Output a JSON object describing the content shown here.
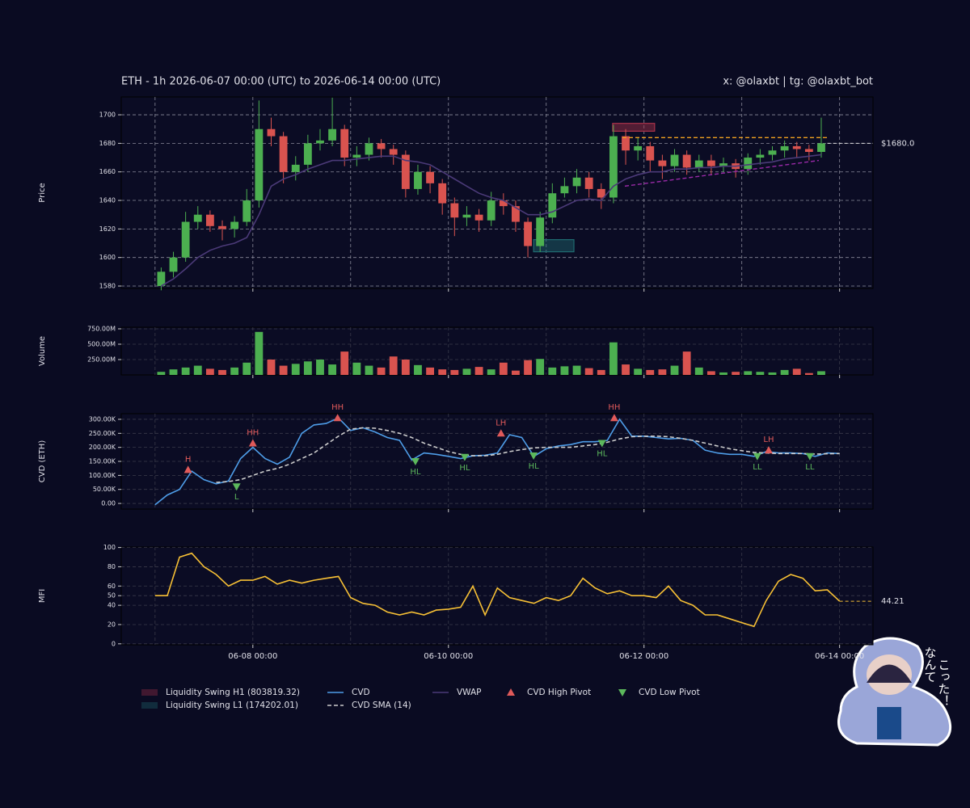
{
  "header": {
    "title": "ETH - 1h 2026-06-07 00:00 (UTC) to 2026-06-14 00:00 (UTC)",
    "handle": "x: @olaxbt | tg: @olaxbt_bot"
  },
  "sticker_text": [
    "なんて",
    "こった！"
  ],
  "x_axis": {
    "xlim": [
      -8.3,
      176.2
    ],
    "grid": [
      0,
      24,
      48,
      72,
      96,
      120,
      144,
      168
    ],
    "ticks": [
      {
        "value": 24,
        "label": "06-08 00:00"
      },
      {
        "value": 72,
        "label": "06-10 00:00"
      },
      {
        "value": 120,
        "label": "06-12 00:00"
      },
      {
        "value": 168,
        "label": "06-14 00:00"
      }
    ]
  },
  "chart_data": [
    {
      "type": "candlestick",
      "ylabel": "Price",
      "grid": true,
      "grid_color": "#8a8a9a",
      "up_color": "#4caf50",
      "down_color": "#d9534f",
      "ylim": [
        1578.3,
        1712.5
      ],
      "yticks": [
        1580,
        1600,
        1620,
        1640,
        1660,
        1680,
        1700
      ],
      "x": [
        0,
        3,
        6,
        9,
        12,
        15,
        18,
        21,
        24,
        27,
        30,
        33,
        36,
        39,
        42,
        45,
        48,
        51,
        54,
        57,
        60,
        63,
        66,
        69,
        72,
        75,
        78,
        81,
        84,
        87,
        90,
        93,
        96,
        99,
        102,
        105,
        108,
        111,
        114,
        117,
        120,
        123,
        126,
        129,
        132,
        135,
        138,
        141,
        144,
        147,
        150,
        153,
        156,
        159,
        162
      ],
      "open": [
        1580,
        1590,
        1600,
        1625,
        1630,
        1622,
        1620,
        1625,
        1640,
        1690,
        1685,
        1660,
        1665,
        1680,
        1682,
        1690,
        1670,
        1672,
        1680,
        1676,
        1672,
        1648,
        1660,
        1652,
        1638,
        1628,
        1630,
        1626,
        1640,
        1636,
        1625,
        1608,
        1628,
        1645,
        1650,
        1656,
        1648,
        1642,
        1685,
        1675,
        1678,
        1668,
        1664,
        1672,
        1663,
        1668,
        1664,
        1666,
        1662,
        1670,
        1672,
        1675,
        1678,
        1676,
        1674
      ],
      "high": [
        1593,
        1604,
        1632,
        1636,
        1633,
        1626,
        1629,
        1648,
        1710,
        1698,
        1688,
        1671,
        1686,
        1690,
        1712,
        1693,
        1678,
        1684,
        1683,
        1679,
        1675,
        1665,
        1664,
        1655,
        1642,
        1636,
        1634,
        1646,
        1645,
        1640,
        1628,
        1632,
        1652,
        1656,
        1662,
        1660,
        1652,
        1693,
        1690,
        1684,
        1681,
        1672,
        1676,
        1675,
        1672,
        1672,
        1670,
        1669,
        1673,
        1676,
        1678,
        1682,
        1681,
        1679,
        1698
      ],
      "low": [
        1577,
        1586,
        1597,
        1620,
        1618,
        1612,
        1614,
        1622,
        1635,
        1678,
        1652,
        1654,
        1660,
        1675,
        1678,
        1664,
        1664,
        1668,
        1670,
        1665,
        1642,
        1644,
        1645,
        1630,
        1615,
        1622,
        1618,
        1622,
        1630,
        1618,
        1600,
        1604,
        1624,
        1642,
        1645,
        1642,
        1634,
        1638,
        1665,
        1668,
        1660,
        1655,
        1660,
        1658,
        1660,
        1658,
        1660,
        1656,
        1658,
        1665,
        1668,
        1670,
        1670,
        1668,
        1670
      ],
      "close": [
        1590,
        1600,
        1625,
        1630,
        1622,
        1620,
        1625,
        1640,
        1690,
        1685,
        1660,
        1665,
        1680,
        1682,
        1690,
        1670,
        1672,
        1680,
        1676,
        1672,
        1648,
        1660,
        1652,
        1638,
        1628,
        1630,
        1626,
        1640,
        1636,
        1625,
        1608,
        1628,
        1645,
        1650,
        1656,
        1648,
        1642,
        1685,
        1675,
        1678,
        1668,
        1664,
        1672,
        1663,
        1668,
        1664,
        1666,
        1662,
        1670,
        1672,
        1675,
        1678,
        1676,
        1674,
        1680
      ],
      "vwap": {
        "name": "VWAP",
        "color": "#4b3a78",
        "values": [
          1580,
          1585,
          1592,
          1600,
          1605,
          1608,
          1610,
          1614,
          1630,
          1650,
          1655,
          1658,
          1662,
          1665,
          1668,
          1668,
          1669,
          1670,
          1671,
          1671,
          1668,
          1667,
          1665,
          1660,
          1655,
          1650,
          1645,
          1642,
          1640,
          1635,
          1630,
          1630,
          1632,
          1636,
          1640,
          1641,
          1640,
          1650,
          1655,
          1658,
          1660,
          1660,
          1662,
          1662,
          1663,
          1663,
          1664,
          1664,
          1665,
          1666,
          1667,
          1669,
          1670,
          1671,
          1672
        ]
      },
      "zones": [
        {
          "name": "Liquidity Swing H1 (803819.32)",
          "color": "#a8324a",
          "x": [
            112.3,
            122.6
          ],
          "y": [
            1688.5,
            1694
          ]
        },
        {
          "name": "Liquidity Swing L1 (174202.01)",
          "color": "#1f6b70",
          "x": [
            92.9,
            102.8
          ],
          "y": [
            1604,
            1612.5
          ]
        }
      ],
      "levels": [
        {
          "color": "#f0a020",
          "x": [
            114.7,
            165.3
          ],
          "y": [
            1684,
            1684
          ]
        },
        {
          "color": "#9a2aa8",
          "x": [
            115.3,
            162.9
          ],
          "y": [
            1650,
            1668
          ]
        }
      ],
      "last_price": {
        "value": 1680,
        "label": "$1680.0"
      }
    },
    {
      "type": "bar",
      "ylabel": "Volume",
      "grid": true,
      "grid_color": "#3a3a4a",
      "up_color": "#4caf50",
      "down_color": "#d9534f",
      "ylim": [
        0,
        776
      ],
      "yticks": [
        {
          "value": 250,
          "label": "250.00M"
        },
        {
          "value": 500,
          "label": "500.00M"
        },
        {
          "value": 750,
          "label": "750.00M"
        }
      ],
      "values": [
        50,
        90,
        120,
        150,
        100,
        80,
        120,
        200,
        700,
        250,
        150,
        180,
        220,
        250,
        170,
        380,
        200,
        150,
        120,
        300,
        250,
        160,
        120,
        90,
        80,
        100,
        130,
        90,
        200,
        70,
        240,
        260,
        120,
        140,
        150,
        110,
        80,
        530,
        170,
        100,
        80,
        90,
        150,
        380,
        120,
        60,
        40,
        50,
        60,
        50,
        40,
        80,
        100,
        30,
        60
      ]
    },
    {
      "type": "line",
      "ylabel": "CVD (ETH)",
      "grid": true,
      "grid_color": "#3a3a4a",
      "ylim": [
        -20,
        320
      ],
      "yticks": [
        {
          "value": 0,
          "label": "0.00"
        },
        {
          "value": 50,
          "label": "50.00K"
        },
        {
          "value": 100,
          "label": "100.00K"
        },
        {
          "value": 150,
          "label": "150.00K"
        },
        {
          "value": 200,
          "label": "200.00K"
        },
        {
          "value": 250,
          "label": "250.00K"
        },
        {
          "value": 300,
          "label": "300.00K"
        }
      ],
      "x": [
        0,
        3,
        6,
        9,
        12,
        15,
        18,
        21,
        24,
        27,
        30,
        33,
        36,
        39,
        42,
        45,
        48,
        51,
        54,
        57,
        60,
        63,
        66,
        69,
        72,
        75,
        78,
        81,
        84,
        87,
        90,
        93,
        96,
        99,
        102,
        105,
        108,
        111,
        114,
        117,
        120,
        123,
        126,
        129,
        132,
        135,
        138,
        141,
        144,
        147,
        150,
        153,
        156,
        159,
        162,
        165,
        168
      ],
      "series": [
        {
          "name": "CVD",
          "color": "#4e9de8",
          "dash": false,
          "values": [
            -5,
            30,
            50,
            115,
            85,
            70,
            80,
            160,
            200,
            160,
            140,
            165,
            250,
            280,
            285,
            305,
            260,
            270,
            255,
            235,
            225,
            155,
            180,
            175,
            168,
            160,
            170,
            172,
            180,
            245,
            235,
            168,
            195,
            205,
            210,
            220,
            220,
            225,
            300,
            240,
            240,
            235,
            230,
            232,
            225,
            190,
            180,
            175,
            175,
            168,
            185,
            180,
            180,
            178,
            168,
            180,
            178
          ]
        },
        {
          "name": "CVD SMA (14)",
          "color": "#cccccc",
          "dash": true,
          "values": [
            null,
            null,
            null,
            null,
            null,
            75,
            78,
            85,
            100,
            115,
            125,
            140,
            160,
            180,
            210,
            240,
            265,
            270,
            268,
            260,
            250,
            235,
            215,
            200,
            185,
            175,
            170,
            170,
            175,
            185,
            192,
            198,
            200,
            200,
            200,
            205,
            210,
            218,
            230,
            238,
            240,
            240,
            238,
            232,
            225,
            215,
            205,
            195,
            188,
            182,
            180,
            178,
            178,
            178,
            176,
            177,
            178
          ]
        }
      ],
      "pivots": [
        {
          "name": "CVD High Pivot",
          "color": "#e05a5a",
          "direction": "up",
          "points": [
            {
              "x": 8.1,
              "y": 120,
              "label": "H"
            },
            {
              "x": 24,
              "y": 215,
              "label": "HH"
            },
            {
              "x": 44.8,
              "y": 305,
              "label": "HH"
            },
            {
              "x": 84.9,
              "y": 250,
              "label": "LH"
            },
            {
              "x": 112.7,
              "y": 305,
              "label": "HH"
            },
            {
              "x": 150.6,
              "y": 190,
              "label": "LH"
            }
          ]
        },
        {
          "name": "CVD Low Pivot",
          "color": "#5cb85c",
          "direction": "down",
          "points": [
            {
              "x": 20,
              "y": 60,
              "label": "L"
            },
            {
              "x": 63.9,
              "y": 150,
              "label": "HL"
            },
            {
              "x": 76,
              "y": 165,
              "label": "HL"
            },
            {
              "x": 92.9,
              "y": 170,
              "label": "HL"
            },
            {
              "x": 109.7,
              "y": 215,
              "label": "HL"
            },
            {
              "x": 147.8,
              "y": 168,
              "label": "LL"
            },
            {
              "x": 160.7,
              "y": 168,
              "label": "LL"
            }
          ]
        }
      ]
    },
    {
      "type": "line",
      "ylabel": "MFI",
      "grid": true,
      "grid_color": "#3a3a4a",
      "ylim": [
        -1,
        100.5
      ],
      "yticks": [
        0,
        20,
        40,
        50,
        60,
        80,
        100
      ],
      "x": [
        0,
        3,
        6,
        9,
        12,
        15,
        18,
        21,
        24,
        27,
        30,
        33,
        36,
        39,
        42,
        45,
        48,
        51,
        54,
        57,
        60,
        63,
        66,
        69,
        72,
        75,
        78,
        81,
        84,
        87,
        90,
        93,
        96,
        99,
        102,
        105,
        108,
        111,
        114,
        117,
        120,
        123,
        126,
        129,
        132,
        135,
        138,
        141,
        144,
        147,
        150,
        153,
        156,
        159,
        162,
        165,
        168
      ],
      "series": [
        {
          "color": "#f7c035",
          "dash": false,
          "values": [
            50,
            50,
            90,
            94,
            80,
            72,
            60,
            66,
            66,
            70,
            62,
            66,
            63,
            66,
            68,
            70,
            48,
            42,
            40,
            33,
            30,
            33,
            30,
            35,
            36,
            38,
            60,
            30,
            58,
            48,
            45,
            42,
            48,
            45,
            50,
            68,
            58,
            52,
            55,
            50,
            50,
            48,
            60,
            45,
            40,
            30,
            30,
            26,
            22,
            18,
            45,
            65,
            72,
            68,
            55,
            56,
            44.21
          ]
        }
      ],
      "last_value": 44.21
    }
  ]
}
